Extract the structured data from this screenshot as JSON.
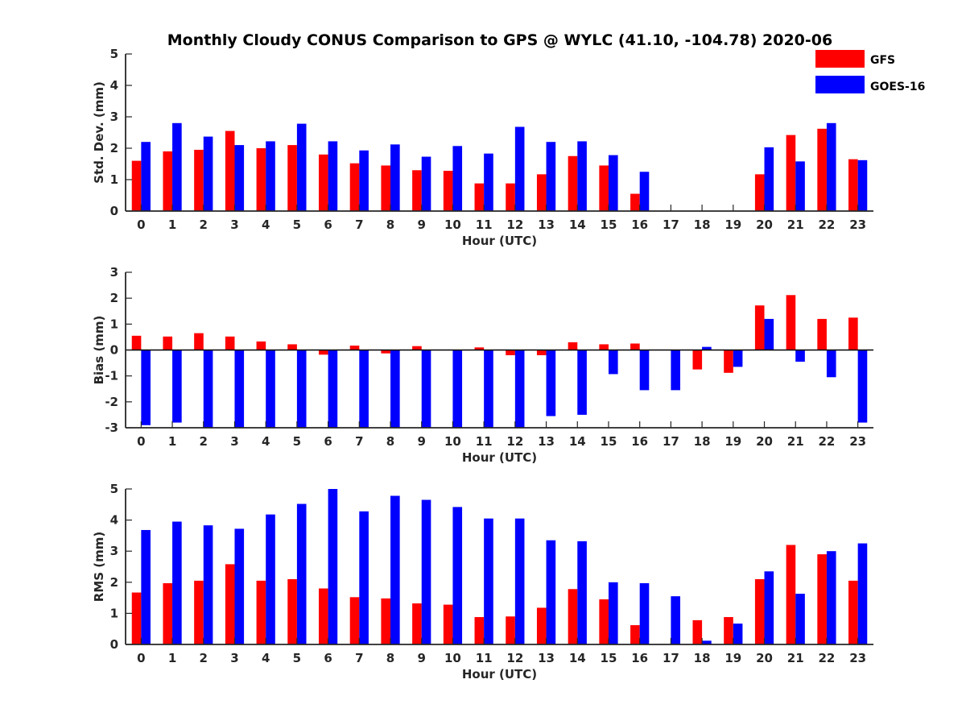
{
  "figure": {
    "title": "Monthly Cloudy CONUS Comparison to GPS @ WYLC (41.10, -104.78) 2020-06"
  },
  "legend": {
    "placement": "top-right",
    "items": [
      {
        "label": "GFS",
        "color": "#ff0000"
      },
      {
        "label": "GOES-16",
        "color": "#0000ff"
      }
    ]
  },
  "chart_data": [
    {
      "type": "bar",
      "ylabel": "Std. Dev. (mm)",
      "xlabel": "Hour (UTC)",
      "ylim": [
        0,
        5
      ],
      "yticks": [
        "0",
        "1",
        "2",
        "3",
        "4",
        "5"
      ],
      "categories": [
        "0",
        "1",
        "2",
        "3",
        "4",
        "5",
        "6",
        "7",
        "8",
        "9",
        "10",
        "11",
        "12",
        "13",
        "14",
        "15",
        "16",
        "17",
        "18",
        "19",
        "20",
        "21",
        "22",
        "23"
      ],
      "series": [
        {
          "name": "GFS",
          "color": "#ff0000",
          "values": [
            1.6,
            1.9,
            1.95,
            2.55,
            2.0,
            2.1,
            1.8,
            1.52,
            1.45,
            1.3,
            1.28,
            0.88,
            0.88,
            1.17,
            1.75,
            1.45,
            0.55,
            0,
            0,
            0,
            1.17,
            2.42,
            2.62,
            1.65
          ]
        },
        {
          "name": "GOES-16",
          "color": "#0000ff",
          "values": [
            2.2,
            2.8,
            2.37,
            2.1,
            2.22,
            2.78,
            2.22,
            1.93,
            2.12,
            1.73,
            2.07,
            1.83,
            2.68,
            2.2,
            2.22,
            1.78,
            1.25,
            0,
            0,
            0,
            2.03,
            1.58,
            2.8,
            1.62
          ]
        }
      ]
    },
    {
      "type": "bar",
      "ylabel": "Bias (mm)",
      "xlabel": "Hour (UTC)",
      "ylim": [
        -3,
        3
      ],
      "yticks": [
        "-3",
        "-2",
        "-1",
        "0",
        "1",
        "2",
        "3"
      ],
      "categories": [
        "0",
        "1",
        "2",
        "3",
        "4",
        "5",
        "6",
        "7",
        "8",
        "9",
        "10",
        "11",
        "12",
        "13",
        "14",
        "15",
        "16",
        "17",
        "18",
        "19",
        "20",
        "21",
        "22",
        "23"
      ],
      "series": [
        {
          "name": "GFS",
          "color": "#ff0000",
          "values": [
            0.55,
            0.52,
            0.65,
            0.52,
            0.33,
            0.22,
            -0.18,
            0.17,
            -0.13,
            0.15,
            0,
            0.1,
            -0.2,
            -0.2,
            0.3,
            0.22,
            0.25,
            0,
            -0.75,
            -0.88,
            1.72,
            2.12,
            1.2,
            1.25
          ]
        },
        {
          "name": "GOES-16",
          "color": "#0000ff",
          "values": [
            -2.9,
            -2.8,
            -3.0,
            -3.0,
            -3.0,
            -3.0,
            -3.0,
            -3.0,
            -3.0,
            -3.0,
            -3.0,
            -3.0,
            -3.0,
            -2.55,
            -2.5,
            -0.93,
            -1.55,
            -1.55,
            0.12,
            -0.65,
            1.2,
            -0.45,
            -1.05,
            -2.8
          ]
        }
      ]
    },
    {
      "type": "bar",
      "ylabel": "RMS (mm)",
      "xlabel": "Hour (UTC)",
      "ylim": [
        0,
        5
      ],
      "yticks": [
        "0",
        "1",
        "2",
        "3",
        "4",
        "5"
      ],
      "categories": [
        "0",
        "1",
        "2",
        "3",
        "4",
        "5",
        "6",
        "7",
        "8",
        "9",
        "10",
        "11",
        "12",
        "13",
        "14",
        "15",
        "16",
        "17",
        "18",
        "19",
        "20",
        "21",
        "22",
        "23"
      ],
      "series": [
        {
          "name": "GFS",
          "color": "#ff0000",
          "values": [
            1.67,
            1.97,
            2.05,
            2.58,
            2.05,
            2.1,
            1.8,
            1.52,
            1.48,
            1.32,
            1.28,
            0.88,
            0.9,
            1.18,
            1.78,
            1.45,
            0.62,
            0,
            0.78,
            0.88,
            2.1,
            3.2,
            2.9,
            2.05
          ]
        },
        {
          "name": "GOES-16",
          "color": "#0000ff",
          "values": [
            3.68,
            3.95,
            3.83,
            3.72,
            4.18,
            4.52,
            5.0,
            4.28,
            4.78,
            4.65,
            4.42,
            4.05,
            4.05,
            3.35,
            3.32,
            2.0,
            1.97,
            1.55,
            0.12,
            0.67,
            2.35,
            1.63,
            3.0,
            3.25
          ]
        }
      ]
    }
  ]
}
